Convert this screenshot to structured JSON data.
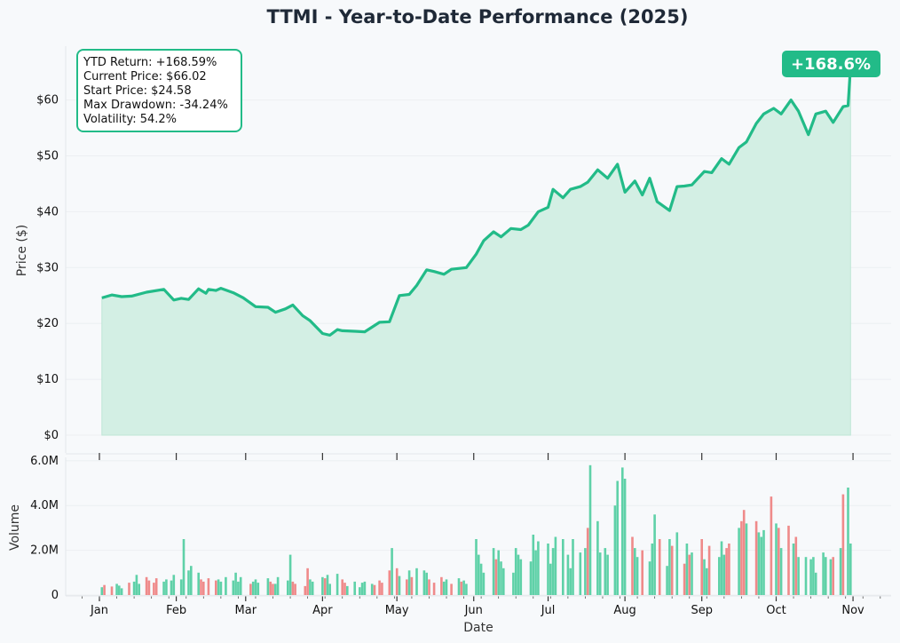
{
  "chart_data": [
    {
      "type": "area",
      "title": "TTMI - Year-to-Date Performance (2025)",
      "ylabel": "Price ($)",
      "ylim": [
        0,
        70
      ],
      "yticks": [
        0,
        10,
        20,
        30,
        40,
        50,
        60
      ],
      "ytick_labels": [
        "$0",
        "$10",
        "$20",
        "$30",
        "$40",
        "$50",
        "$60"
      ],
      "grid": true,
      "line_color": "#22bb88",
      "fill_color": "#d3efe4",
      "badge": "+168.6%",
      "stats": [
        "YTD Return: +168.59%",
        "Current Price: $66.02",
        "Start Price: $24.58",
        "Max Drawdown: -34.24%",
        "Volatility: 54.2%"
      ],
      "x": [
        "2025-01-02",
        "2025-01-06",
        "2025-01-10",
        "2025-01-14",
        "2025-01-20",
        "2025-01-27",
        "2025-01-31",
        "2025-02-03",
        "2025-02-06",
        "2025-02-10",
        "2025-02-13",
        "2025-02-14",
        "2025-02-17",
        "2025-02-19",
        "2025-02-24",
        "2025-02-28",
        "2025-03-05",
        "2025-03-10",
        "2025-03-13",
        "2025-03-17",
        "2025-03-20",
        "2025-03-24",
        "2025-03-27",
        "2025-04-01",
        "2025-04-04",
        "2025-04-07",
        "2025-04-09",
        "2025-04-14",
        "2025-04-18",
        "2025-04-24",
        "2025-04-28",
        "2025-05-02",
        "2025-05-06",
        "2025-05-09",
        "2025-05-13",
        "2025-05-16",
        "2025-05-20",
        "2025-05-23",
        "2025-05-29",
        "2025-06-02",
        "2025-06-05",
        "2025-06-09",
        "2025-06-12",
        "2025-06-16",
        "2025-06-20",
        "2025-06-23",
        "2025-06-27",
        "2025-07-01",
        "2025-07-03",
        "2025-07-07",
        "2025-07-10",
        "2025-07-14",
        "2025-07-17",
        "2025-07-21",
        "2025-07-25",
        "2025-07-29",
        "2025-08-01",
        "2025-08-05",
        "2025-08-08",
        "2025-08-11",
        "2025-08-14",
        "2025-08-19",
        "2025-08-22",
        "2025-08-25",
        "2025-08-28",
        "2025-09-02",
        "2025-09-05",
        "2025-09-09",
        "2025-09-12",
        "2025-09-16",
        "2025-09-19",
        "2025-09-23",
        "2025-09-26",
        "2025-09-30",
        "2025-10-03",
        "2025-10-07",
        "2025-10-10",
        "2025-10-14",
        "2025-10-17",
        "2025-10-21",
        "2025-10-24",
        "2025-10-28",
        "2025-10-30",
        "2025-10-31"
      ],
      "values": [
        24.58,
        25.1,
        24.8,
        24.9,
        25.6,
        26.1,
        24.2,
        24.5,
        24.3,
        26.2,
        25.4,
        26.1,
        25.9,
        26.3,
        25.5,
        24.6,
        23.0,
        22.9,
        22.0,
        22.6,
        23.3,
        21.4,
        20.5,
        18.2,
        17.9,
        18.9,
        18.7,
        18.6,
        18.5,
        20.2,
        20.3,
        25.0,
        25.2,
        26.8,
        29.6,
        29.3,
        28.8,
        29.7,
        30.0,
        32.4,
        34.8,
        36.4,
        35.5,
        37.0,
        36.8,
        37.6,
        40.0,
        40.8,
        44.0,
        42.5,
        44.0,
        44.5,
        45.3,
        47.5,
        46.0,
        48.5,
        43.5,
        45.5,
        43.0,
        46.0,
        41.8,
        40.2,
        44.5,
        44.6,
        44.8,
        47.2,
        47.0,
        49.5,
        48.5,
        51.5,
        52.5,
        55.8,
        57.5,
        58.5,
        57.5,
        60.0,
        58.0,
        53.8,
        57.5,
        58.0,
        56.0,
        58.8,
        59.0,
        66.02
      ]
    },
    {
      "type": "bar",
      "xlabel": "Date",
      "ylabel": "Volume",
      "ylim": [
        0,
        6000000
      ],
      "yticks": [
        0,
        2000000,
        4000000,
        6000000
      ],
      "ytick_labels": [
        "0",
        "2.0M",
        "4.0M",
        "6.0M"
      ],
      "xtick_labels": [
        "Jan",
        "Feb",
        "Mar",
        "Apr",
        "May",
        "Jun",
        "Jul",
        "Aug",
        "Sep",
        "Oct",
        "Nov"
      ],
      "up_color": "#5fd1a8",
      "down_color": "#ef8a8a",
      "volumes": [
        0.35,
        0.45,
        0.38,
        0.5,
        0.42,
        0.3,
        0.55,
        0.6,
        0.9,
        0.5,
        0.8,
        0.65,
        0.55,
        0.75,
        0.6,
        0.7,
        0.65,
        0.9,
        0.7,
        2.5,
        1.1,
        1.3,
        1.0,
        0.7,
        0.6,
        0.75,
        0.65,
        0.7,
        0.6,
        0.8,
        0.65,
        1.0,
        0.6,
        0.8,
        0.5,
        0.6,
        0.7,
        0.55,
        0.75,
        0.6,
        0.5,
        0.5,
        0.8,
        0.65,
        1.8,
        0.6,
        0.5,
        0.4,
        1.2,
        0.7,
        0.6,
        0.8,
        0.75,
        0.9,
        0.5,
        0.95,
        0.7,
        0.55,
        0.4,
        0.6,
        0.35,
        0.55,
        0.6,
        0.5,
        0.45,
        0.65,
        0.55,
        1.1,
        2.1,
        1.2,
        0.85,
        0.7,
        1.1,
        0.8,
        1.2,
        1.1,
        1.0,
        0.7,
        0.55,
        0.8,
        0.6,
        0.7,
        0.5,
        0.75,
        0.6,
        0.65,
        0.5,
        2.5,
        1.8,
        1.4,
        1.0,
        2.1,
        1.6,
        2.0,
        1.5,
        1.2,
        1.0,
        2.1,
        1.8,
        1.6,
        1.5,
        2.7,
        2.0,
        2.4,
        2.3,
        1.4,
        2.1,
        2.6,
        2.5,
        1.8,
        1.2,
        2.5,
        1.9,
        2.1,
        3.0,
        5.8,
        3.3,
        1.9,
        2.1,
        1.8,
        4.0,
        5.1,
        5.7,
        5.2,
        2.6,
        2.1,
        1.7,
        2.0,
        1.5,
        2.3,
        3.6,
        2.5,
        1.3,
        2.5,
        2.2,
        2.8,
        1.4,
        2.3,
        1.8,
        1.9,
        2.5,
        1.6,
        1.2,
        2.2,
        1.7,
        2.4,
        1.8,
        2.1,
        2.3,
        3.0,
        3.3,
        3.8,
        3.2,
        3.3,
        2.8,
        2.6,
        2.9,
        4.4,
        3.2,
        3.0,
        2.1,
        3.1,
        2.3,
        2.6,
        1.7,
        1.7,
        1.6,
        1.7,
        1.0,
        1.9,
        1.7,
        1.6,
        1.7,
        2.1,
        4.5,
        4.8,
        2.3
      ],
      "volume_unit": "M"
    }
  ]
}
